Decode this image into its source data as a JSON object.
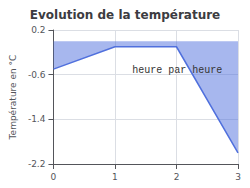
{
  "chart_data": {
    "type": "area",
    "title": "Evolution de la température",
    "xlabel": "heure par heure",
    "ylabel": "Température en °C",
    "x": [
      0,
      1,
      2,
      3
    ],
    "values": [
      -0.5,
      -0.1,
      -0.1,
      -2.0
    ],
    "xlim": [
      0,
      3
    ],
    "ylim": [
      -2.2,
      0.2
    ],
    "xticks": [
      0,
      1,
      2,
      3
    ],
    "yticks": [
      0.2,
      -0.6,
      -1.4,
      -2.2
    ],
    "grid": true
  }
}
